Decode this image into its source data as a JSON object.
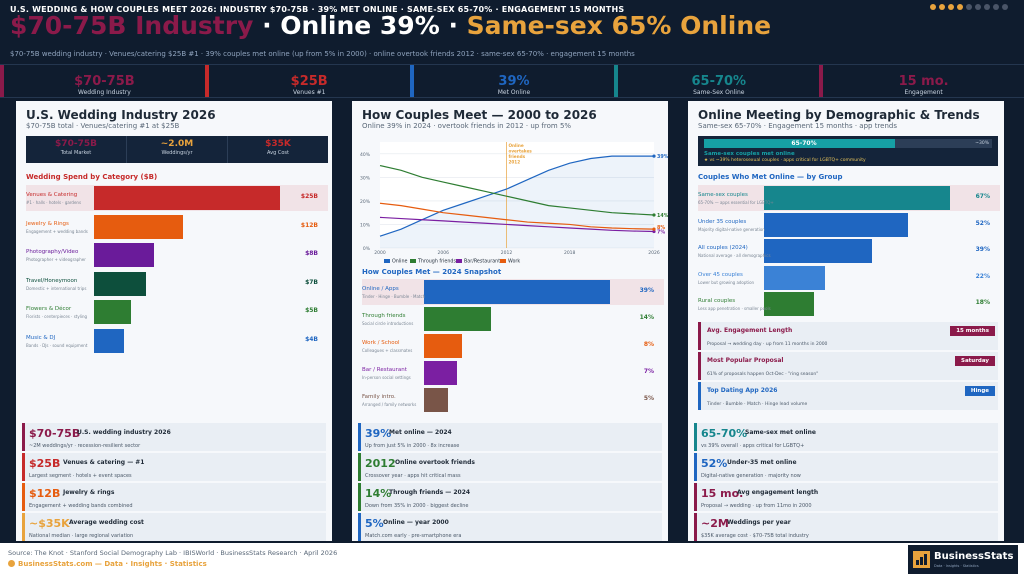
{
  "header": {
    "kicker": "U.S. WEDDING & HOW COUPLES MEET 2026: INDUSTRY $70-75B · 39% MET ONLINE · SAME-SEX 65-70% · ENGAGEMENT 15 MONTHS",
    "headline_1": "$70-75B Industry",
    "headline_sep": " · ",
    "headline_2": "Online 39%",
    "headline_3": "Same-sex 65% Online",
    "subline": "$70-75B wedding industry · Venues/catering $25B #1 · 39% couples met online (up from 5% in 2000) · online overtook friends 2012 · same-sex 65-70% · engagement 15 months",
    "dots_active": 4,
    "dots_total": 9
  },
  "kpis": [
    {
      "value": "$70-75B",
      "label": "Wedding Industry",
      "color": "#8b1a4a"
    },
    {
      "value": "$25B",
      "label": "Venues #1",
      "color": "#c62a2a"
    },
    {
      "value": "39%",
      "label": "Met Online",
      "color": "#1f66c1"
    },
    {
      "value": "65-70%",
      "label": "Same-Sex Online",
      "color": "#16868d"
    },
    {
      "value": "15 mo.",
      "label": "Engagement",
      "color": "#8b1a4a"
    }
  ],
  "panel1": {
    "title": "U.S. Wedding Industry 2026",
    "subtitle": "$70-75B total · Venues/catering #1 at $25B",
    "stats": [
      {
        "value": "$70-75B",
        "label": "Total Market",
        "color": "#8b1a4a"
      },
      {
        "value": "~2.0M",
        "label": "Weddings/yr",
        "color": "#e8a33d"
      },
      {
        "value": "$35K",
        "label": "Avg Cost",
        "color": "#c62a2a"
      }
    ],
    "section": "Wedding Spend by Category ($B)",
    "rows": [
      {
        "label": "Venues & Catering",
        "sub": "#1 · halls · hotels · gardens",
        "value": 25,
        "display": "$25B",
        "color": "#c62a2a"
      },
      {
        "label": "Jewelry & Rings",
        "sub": "Engagement + wedding bands",
        "value": 12,
        "display": "$12B",
        "color": "#e65c0f"
      },
      {
        "label": "Photography/Video",
        "sub": "Photographer + videographer",
        "value": 8,
        "display": "$8B",
        "color": "#6a1b9a"
      },
      {
        "label": "Travel/Honeymoon",
        "sub": "Domestic + international trips",
        "value": 7,
        "display": "$7B",
        "color": "#0d4f3c"
      },
      {
        "label": "Flowers & Décor",
        "sub": "Florists · centerpieces · styling",
        "value": 5,
        "display": "$5B",
        "color": "#2e7d32"
      },
      {
        "label": "Music & DJ",
        "sub": "Bands · DJs · sound equipment",
        "value": 4,
        "display": "$4B",
        "color": "#1f66c1"
      }
    ],
    "cards": [
      {
        "big": "$70-75B",
        "title": "U.S. wedding industry 2026",
        "desc": "~2M weddings/yr · recession-resilient sector",
        "color": "#8b1a4a"
      },
      {
        "big": "$25B",
        "title": "Venues & catering — #1",
        "desc": "Largest segment · hotels + event spaces",
        "color": "#c62a2a"
      },
      {
        "big": "$12B",
        "title": "Jewelry & rings",
        "desc": "Engagement + wedding bands combined",
        "color": "#e65c0f"
      },
      {
        "big": "~$35K",
        "title": "Average wedding cost",
        "desc": "National median · large regional variation",
        "color": "#e8a33d"
      }
    ]
  },
  "panel2": {
    "title": "How Couples Meet — 2000 to 2026",
    "subtitle": "Online 39% in 2024 · overtook friends in 2012 · up from 5%",
    "annotation": [
      "Online",
      "overtakes",
      "friends",
      "2012"
    ],
    "section": "How Couples Met — 2024 Snapshot",
    "rows": [
      {
        "label": "Online / Apps",
        "sub": "Tinder · Hinge · Bumble · Match",
        "value": 39,
        "display": "39%",
        "color": "#1f66c1"
      },
      {
        "label": "Through friends",
        "sub": "Social circle introductions",
        "value": 14,
        "display": "14%",
        "color": "#2e7d32"
      },
      {
        "label": "Work / School",
        "sub": "Colleagues + classmates",
        "value": 8,
        "display": "8%",
        "color": "#e65c0f"
      },
      {
        "label": "Bar / Restaurant",
        "sub": "In-person social settings",
        "value": 7,
        "display": "7%",
        "color": "#7b1fa2"
      },
      {
        "label": "Family intro.",
        "sub": "Arranged / family networks",
        "value": 5,
        "display": "5%",
        "color": "#795548"
      }
    ],
    "cards": [
      {
        "big": "39%",
        "title": "Met online — 2024",
        "desc": "Up from just 5% in 2000 · 8x increase",
        "color": "#1f66c1"
      },
      {
        "big": "2012",
        "title": "Online overtook friends",
        "desc": "Crossover year · apps hit critical mass",
        "color": "#2e7d32"
      },
      {
        "big": "14%",
        "title": "Through friends — 2024",
        "desc": "Down from 35% in 2000 · biggest decline",
        "color": "#2e7d32"
      },
      {
        "big": "5%",
        "title": "Online — year 2000",
        "desc": "Match.com early · pre-smartphone era",
        "color": "#1f66c1"
      }
    ]
  },
  "panel3": {
    "title": "Online Meeting by Demographic & Trends",
    "subtitle": "Same-sex 65-70% · Engagement 15 months · app trends",
    "gauge": {
      "text": "65-70%",
      "fill": 67.5,
      "right": "~30%",
      "line1": "Same-sex couples met online",
      "line2": "★  vs ~39% heterosexual couples · apps critical for LGBTQ+ community"
    },
    "section": "Couples Who Met Online — by Group",
    "rows": [
      {
        "label": "Same-sex couples",
        "sub": "65-70% — apps essential for LGBTQ+",
        "value": 67,
        "display": "67%",
        "color": "#16868d"
      },
      {
        "label": "Under 35 couples",
        "sub": "Majority digital-native generation",
        "value": 52,
        "display": "52%",
        "color": "#1f66c1"
      },
      {
        "label": "All couples (2024)",
        "sub": "National average · all demographics",
        "value": 39,
        "display": "39%",
        "color": "#1f66c1"
      },
      {
        "label": "Over 45 couples",
        "sub": "Lower but growing adoption",
        "value": 22,
        "display": "22%",
        "color": "#3b82d6"
      },
      {
        "label": "Rural couples",
        "sub": "Less app penetration · smaller pools",
        "value": 18,
        "display": "18%",
        "color": "#2e7d32"
      }
    ],
    "info": [
      {
        "title": "Avg. Engagement Length",
        "desc": "Proposal → wedding day · up from 11 months in 2000",
        "pill": "15 months",
        "color": "#8b1a4a",
        "titlecolor": "#8b1a4a"
      },
      {
        "title": "Most Popular Proposal",
        "desc": "61% of proposals happen Oct-Dec · \"ring season\"",
        "pill": "Saturday",
        "color": "#8b1a4a",
        "titlecolor": "#8b1a4a"
      },
      {
        "title": "Top Dating App 2026",
        "desc": "Tinder · Bumble · Match · Hinge lead volume",
        "pill": "Hinge",
        "color": "#1f66c1",
        "titlecolor": "#1f66c1"
      }
    ],
    "cards": [
      {
        "big": "65-70%",
        "title": "Same-sex met online",
        "desc": "vs 39% overall · apps critical for LGBTQ+",
        "color": "#16868d"
      },
      {
        "big": "52%",
        "title": "Under-35 met online",
        "desc": "Digital-native generation · majority now",
        "color": "#1f66c1"
      },
      {
        "big": "15 mo.",
        "title": "Avg engagement length",
        "desc": "Proposal → wedding · up from 11mo in 2000",
        "color": "#8b1a4a"
      },
      {
        "big": "~2M",
        "title": "Weddings per year",
        "desc": "$35K average cost · $70-75B total industry",
        "color": "#8b1a4a"
      }
    ]
  },
  "chart_data": {
    "type": "line",
    "title": "How Couples Meet — 2000 to 2026",
    "x": [
      2000,
      2002,
      2004,
      2006,
      2008,
      2010,
      2012,
      2014,
      2016,
      2018,
      2020,
      2022,
      2024,
      2026
    ],
    "xticks": [
      "2000",
      "2006",
      "2012",
      "2018",
      "2026"
    ],
    "xtick_values": [
      2000,
      2006,
      2012,
      2018,
      2026
    ],
    "ylim": [
      0,
      45
    ],
    "yticks": [
      "0%",
      "10%",
      "20%",
      "30%",
      "40%"
    ],
    "ytick_values": [
      0,
      10,
      20,
      30,
      40
    ],
    "series": [
      {
        "name": "Online",
        "color": "#1f66c1",
        "end_label": "39%",
        "values": [
          5,
          8,
          12,
          16,
          19,
          22,
          25,
          29,
          33,
          36,
          38,
          39,
          39,
          39
        ]
      },
      {
        "name": "Through friends",
        "color": "#2e7d32",
        "end_label": "14%",
        "values": [
          35,
          33,
          30,
          28,
          26,
          24,
          22,
          20,
          18,
          17,
          16,
          15,
          14.5,
          14
        ]
      },
      {
        "name": "Bar/Restaurant",
        "color": "#7b1fa2",
        "end_label": "7%",
        "values": [
          13,
          12.5,
          12,
          11.5,
          11,
          10.5,
          10,
          9.5,
          9,
          8.5,
          8,
          7.5,
          7.2,
          7
        ]
      },
      {
        "name": "Work",
        "color": "#e65c0f",
        "end_label": "8%",
        "values": [
          19,
          18,
          16.5,
          15,
          14,
          13,
          12,
          11,
          10.5,
          10,
          9,
          8.5,
          8.2,
          8
        ]
      }
    ],
    "annotation_x": 2012,
    "grid": true,
    "legend": "bottom"
  },
  "footer": {
    "source": "Source: The Knot · Stanford Social Demography Lab · IBISWorld · BusinessStats Research · April 2026",
    "brand_line": "BusinessStats.com — Data · Insights · Statistics",
    "logo_name": "BusinessStats",
    "logo_sub": "Data · Insights · Statistics"
  }
}
